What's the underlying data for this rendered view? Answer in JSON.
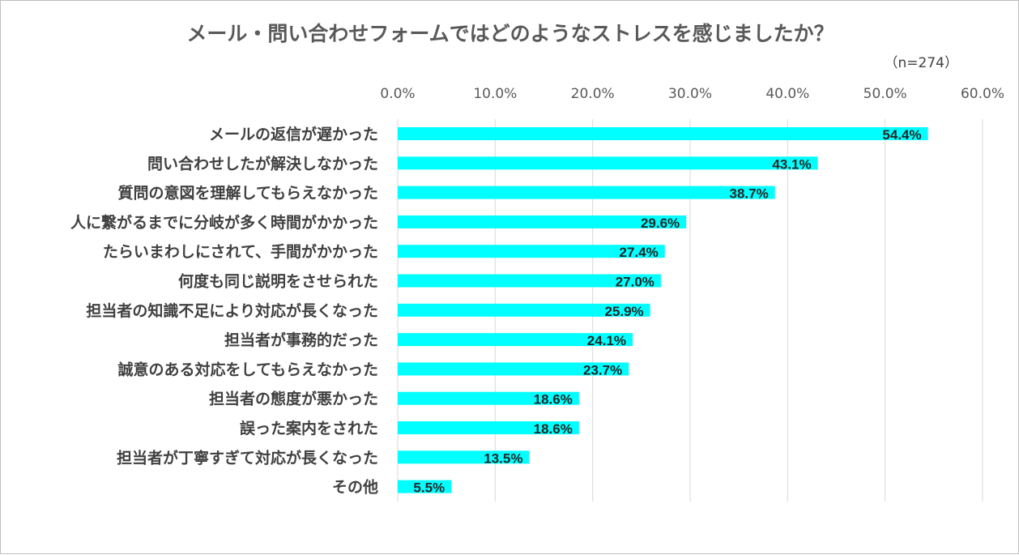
{
  "chart_data": {
    "type": "bar",
    "orientation": "horizontal",
    "title": "メール・問い合わせフォームではどのようなストレスを感じましたか？",
    "sample_size": "（n=274）",
    "categories": [
      "メールの返信が遅かった",
      "問い合わせしたが解決しなかった",
      "質問の意図を理解してもらえなかった",
      "人に繋がるまでに分岐が多く時間がかかった",
      "たらいまわしにされて、手間がかかった",
      "何度も同じ説明をさせられた",
      "担当者の知識不足により対応が長くなった",
      "担当者が事務的だった",
      "誠意のある対応をしてもらえなかった",
      "担当者の態度が悪かった",
      "誤った案内をされた",
      "担当者が丁寧すぎて対応が長くなった",
      "その他"
    ],
    "values": [
      54.4,
      43.1,
      38.7,
      29.6,
      27.4,
      27.0,
      25.9,
      24.1,
      23.7,
      18.6,
      18.6,
      13.5,
      5.5
    ],
    "value_labels": [
      "54.4%",
      "43.1%",
      "38.7%",
      "29.6%",
      "27.4%",
      "27.0%",
      "25.9%",
      "24.1%",
      "23.7%",
      "18.6%",
      "18.6%",
      "13.5%",
      "5.5%"
    ],
    "xlim": [
      0,
      60
    ],
    "ticks": [
      0,
      10,
      20,
      30,
      40,
      50,
      60
    ],
    "tick_labels": [
      "0.0%",
      "10.0%",
      "20.0%",
      "30.0%",
      "40.0%",
      "50.0%",
      "60.0%"
    ],
    "x_axis_position": "top",
    "grid": true,
    "legend": "none",
    "bar_color": "#00ffff",
    "grid_color": "#d9d9d9"
  }
}
